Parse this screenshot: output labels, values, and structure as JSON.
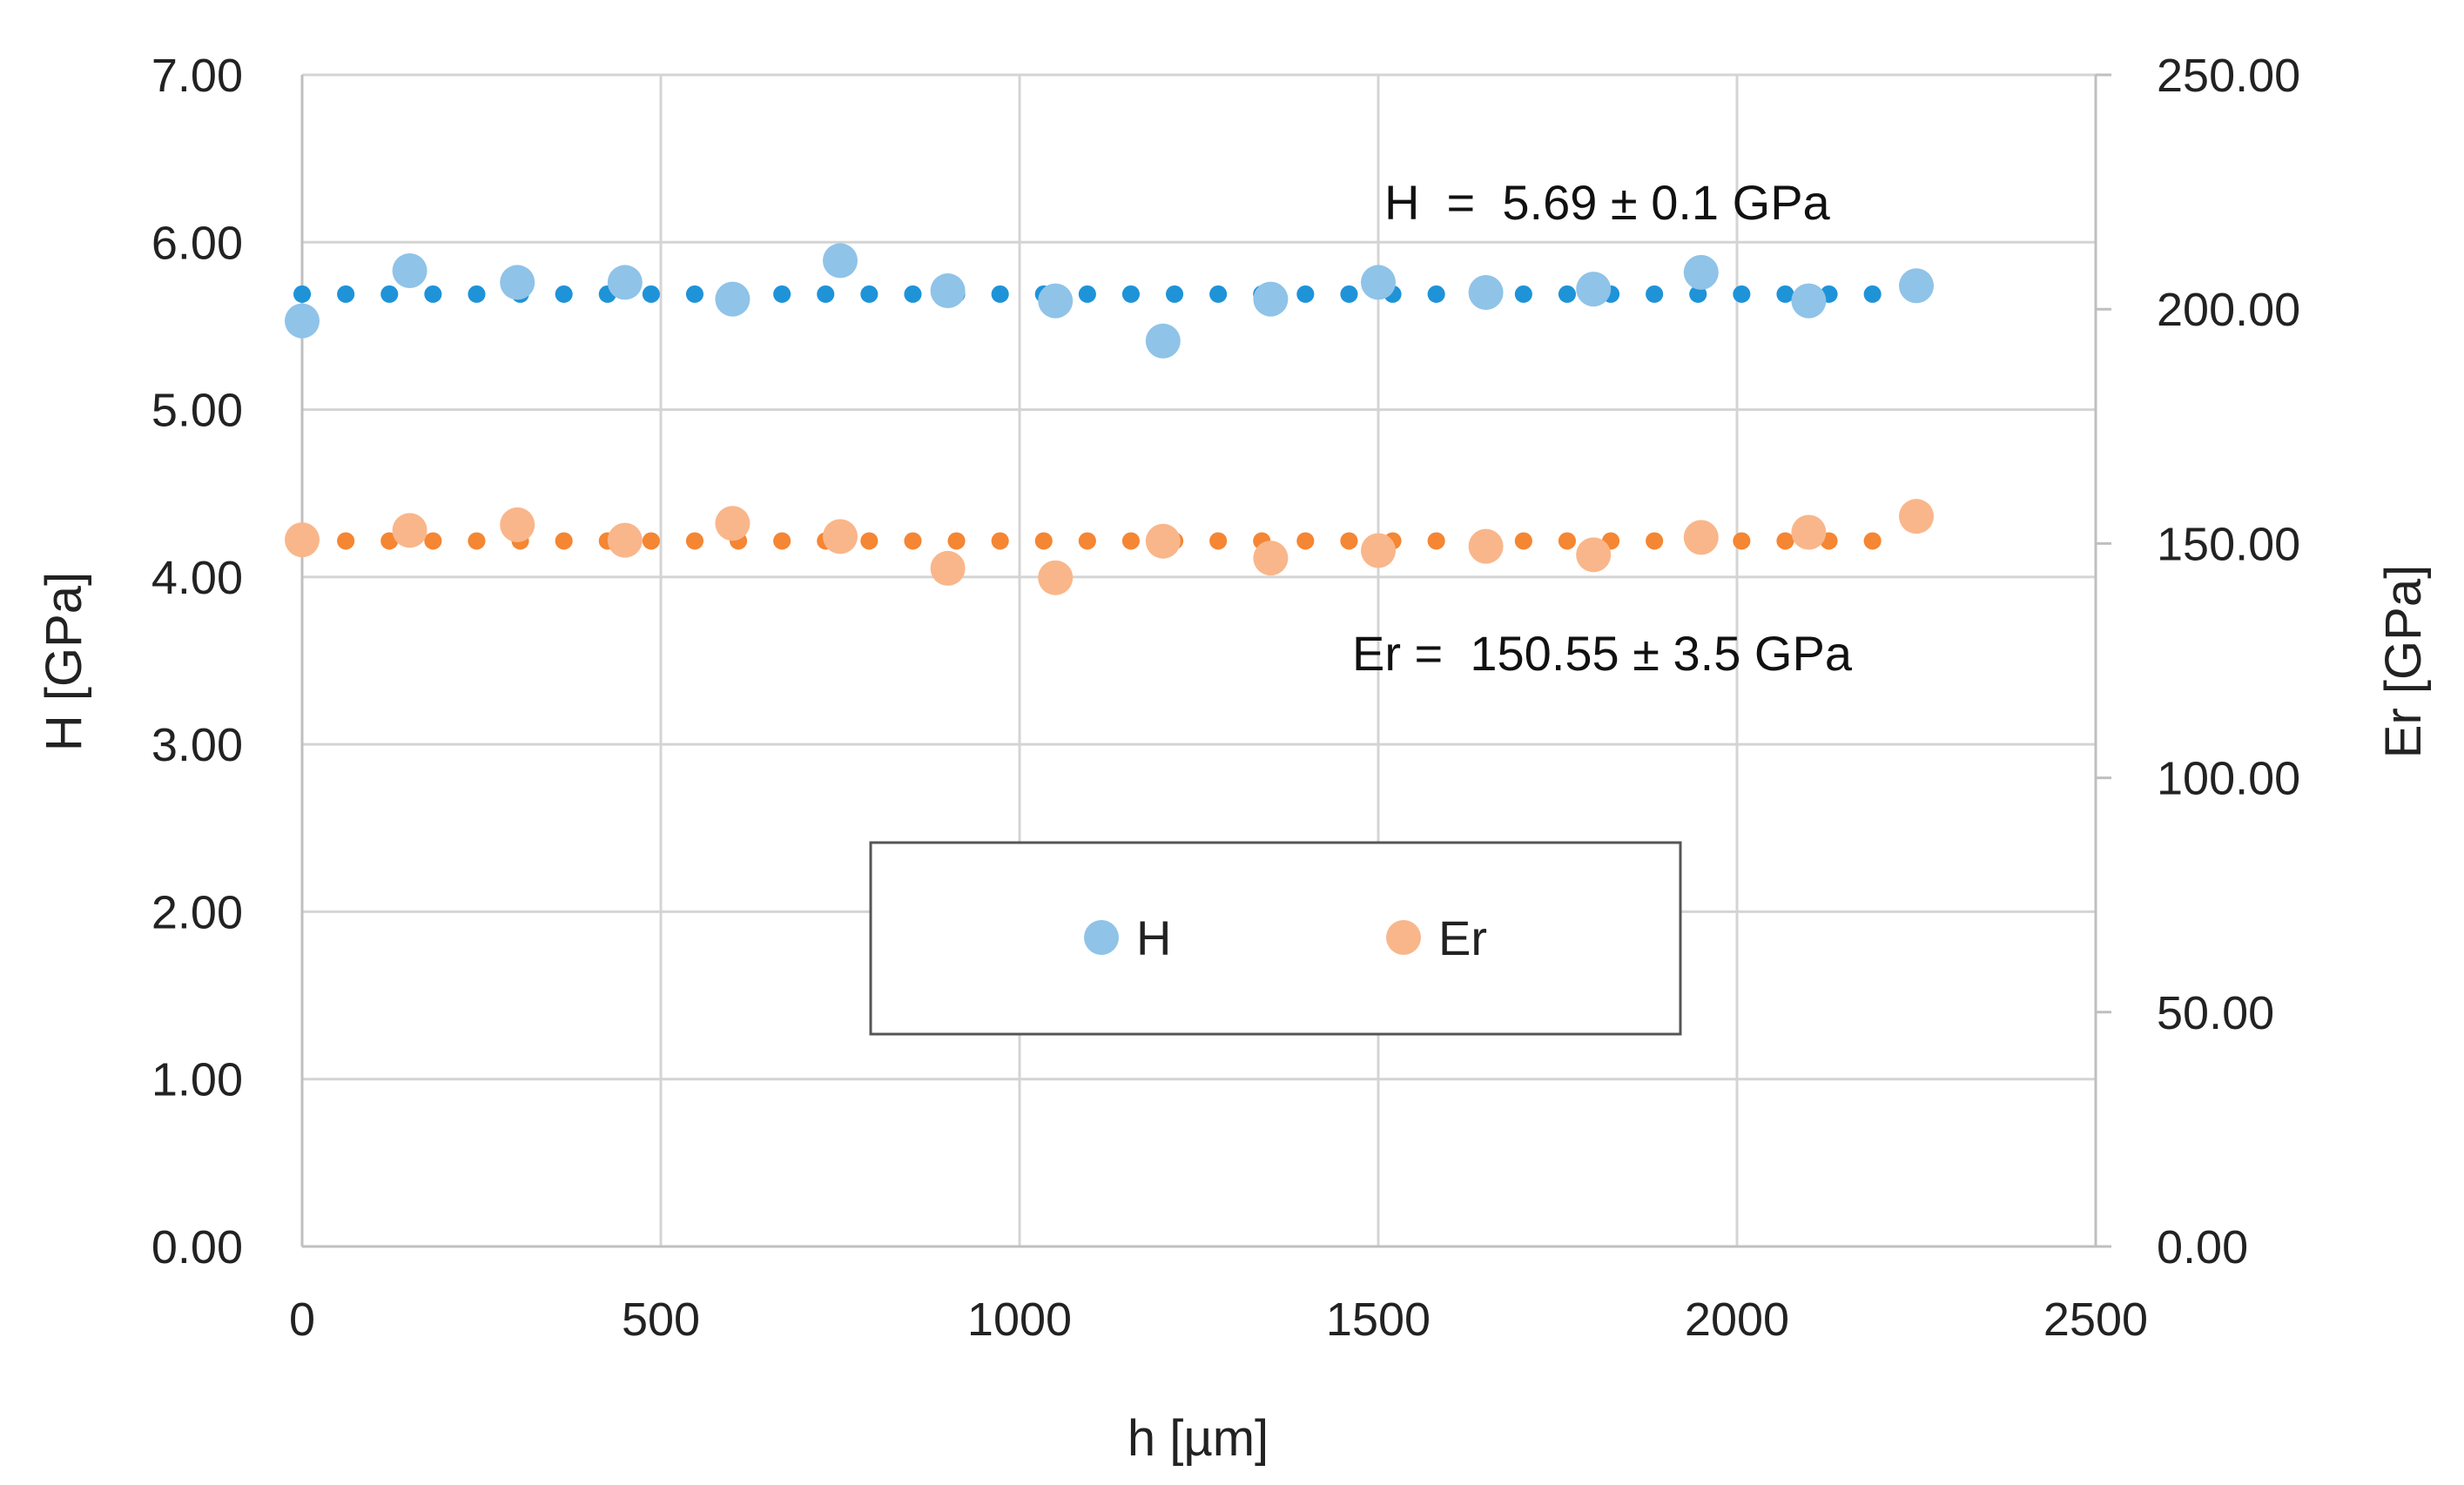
{
  "chart_data": {
    "type": "scatter",
    "xlabel": "h [µm]",
    "ylabel_left": "H [GPa]",
    "ylabel_right": "Er [GPa]",
    "xlim": [
      0,
      2500
    ],
    "ylim_left": [
      0,
      7
    ],
    "ylim_right": [
      0,
      250
    ],
    "x_ticks": [
      "0",
      "500",
      "1000",
      "1500",
      "2000",
      "2500"
    ],
    "y_left_ticks": [
      "0.00",
      "1.00",
      "2.00",
      "3.00",
      "4.00",
      "5.00",
      "6.00",
      "7.00"
    ],
    "y_right_ticks": [
      "0.00",
      "50.00",
      "100.00",
      "150.00",
      "200.00",
      "250.00"
    ],
    "grid": true,
    "legend_placement": "center-bottom",
    "series": [
      {
        "name": "H",
        "axis": "left",
        "color": "#8FC3E8",
        "x": [
          0,
          150,
          300,
          450,
          600,
          750,
          900,
          1050,
          1200,
          1350,
          1500,
          1650,
          1800,
          1950,
          2100,
          2250
        ],
        "values": [
          5.53,
          5.83,
          5.76,
          5.76,
          5.66,
          5.89,
          5.71,
          5.65,
          5.41,
          5.66,
          5.76,
          5.7,
          5.72,
          5.82,
          5.65,
          5.74
        ]
      },
      {
        "name": "Er",
        "axis": "right",
        "color": "#F9B68A",
        "x": [
          0,
          150,
          300,
          450,
          600,
          750,
          900,
          1050,
          1200,
          1350,
          1500,
          1650,
          1800,
          1950,
          2100,
          2250
        ],
        "values": [
          150.8,
          152.8,
          154.0,
          150.7,
          154.3,
          151.5,
          144.7,
          142.7,
          150.5,
          146.9,
          148.5,
          149.4,
          147.6,
          151.3,
          152.4,
          155.8
        ]
      }
    ],
    "mean_lines": [
      {
        "axis": "left",
        "value": 5.69,
        "color": "#1F93D8",
        "x_range": [
          0,
          2250
        ]
      },
      {
        "axis": "right",
        "value": 150.55,
        "color": "#F58633",
        "x_range": [
          0,
          2200
        ]
      }
    ],
    "annotations": [
      {
        "text": "H  =  5.69 ± 0.1 GPa"
      },
      {
        "text": "Er =  150.55 ± 3.5 GPa"
      }
    ]
  }
}
